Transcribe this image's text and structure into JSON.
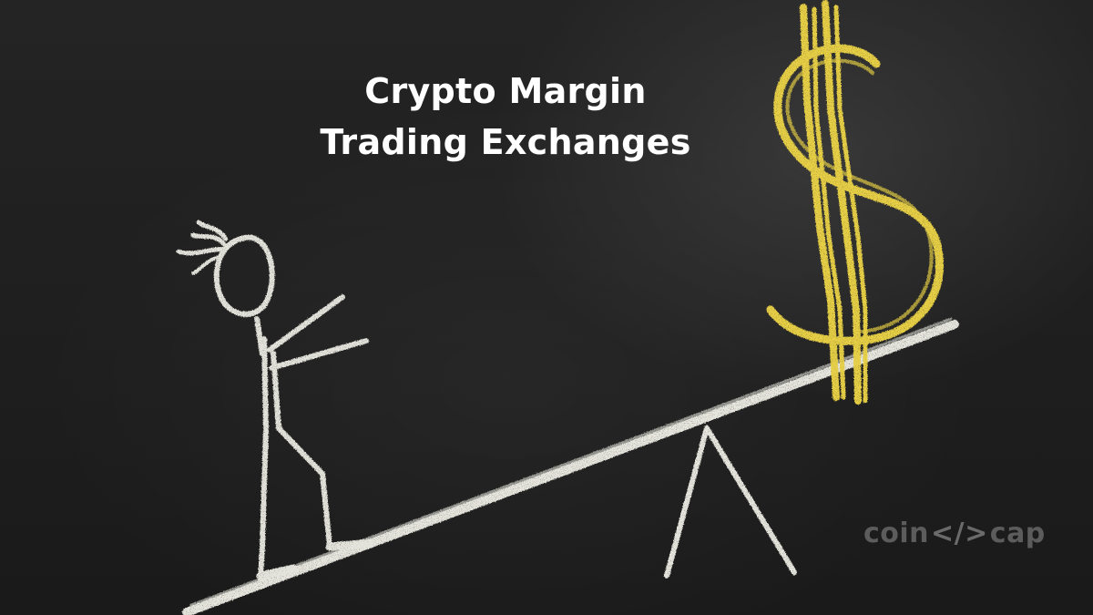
{
  "title": {
    "line1": "Crypto Margin",
    "line2": "Trading Exchanges"
  },
  "logo": {
    "text_left": "coin",
    "text_code": "</>",
    "text_right": "cap"
  },
  "illustration": {
    "style": "chalk drawing on blackboard",
    "subjects": [
      "stick-figure",
      "seesaw",
      "dollar-sign"
    ]
  },
  "colors": {
    "chalk_white": "#e8e8e0",
    "chalk_yellow": "#e6d04a",
    "board": "#1f1f1f"
  }
}
